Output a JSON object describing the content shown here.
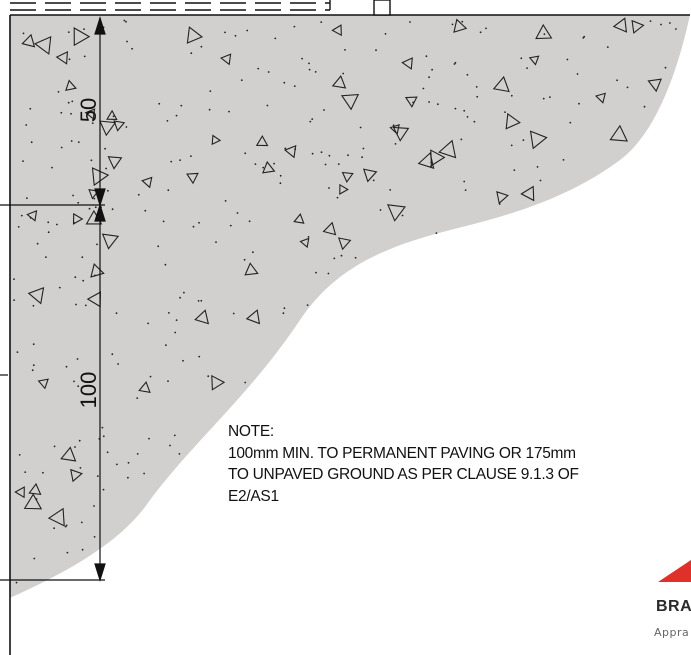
{
  "dimensions": {
    "upper": "50",
    "lower": "100"
  },
  "note": {
    "heading": "NOTE:",
    "lines": [
      "100mm MIN. TO PERMANENT PAVING OR 175mm",
      "TO UNPAVED GROUND AS PER CLAUSE 9.1.3 OF",
      "E2/AS1"
    ]
  },
  "logo": {
    "name": "BRA",
    "tagline": "Appra",
    "accent_color": "#e0302a"
  },
  "colors": {
    "concrete_fill": "#d2d0cf",
    "line": "#111111"
  }
}
